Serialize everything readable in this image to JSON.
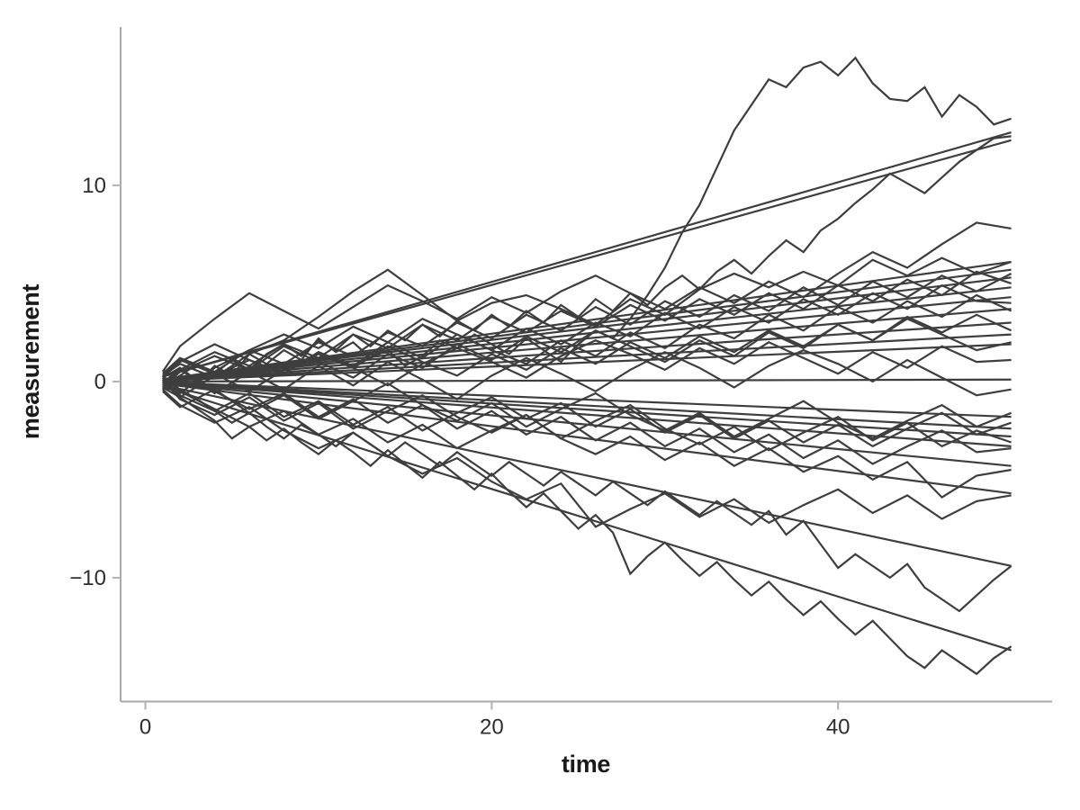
{
  "chart_data": {
    "type": "line",
    "title": "",
    "xlabel": "time",
    "ylabel": "measurement",
    "xlim": [
      -1.43,
      52.36
    ],
    "ylim": [
      -16.31,
      18.07
    ],
    "grid": "off",
    "legend": "none",
    "x_ticks": [
      {
        "value": 0,
        "label": "0"
      },
      {
        "value": 20,
        "label": "20"
      },
      {
        "value": 40,
        "label": "40"
      }
    ],
    "y_ticks": [
      {
        "value": -10,
        "label": "−10"
      },
      {
        "value": 0,
        "label": "0"
      },
      {
        "value": 10,
        "label": "10"
      }
    ],
    "colors": {
      "series_line": "#3e3e3e",
      "axis_line": "#a9a9a9",
      "tick_mark": "#b3b3b3",
      "tick_label": "#2e2e2e",
      "axis_title": "#1a1a1a",
      "background": "#ffffff"
    },
    "x": {
      "x26": [
        1,
        2,
        4,
        6,
        8,
        10,
        12,
        14,
        16,
        18,
        20,
        22,
        24,
        26,
        28,
        30,
        32,
        34,
        36,
        38,
        40,
        42,
        44,
        46,
        48,
        50
      ],
      "x50": [
        1,
        2,
        3,
        4,
        5,
        6,
        7,
        8,
        9,
        10,
        11,
        12,
        13,
        14,
        15,
        16,
        17,
        18,
        19,
        20,
        21,
        22,
        23,
        24,
        25,
        26,
        27,
        28,
        29,
        30,
        31,
        32,
        33,
        34,
        35,
        36,
        37,
        38,
        39,
        40,
        41,
        42,
        43,
        44,
        45,
        46,
        47,
        48,
        49,
        50
      ]
    },
    "series": [
      {
        "name": "series-1",
        "x_key": "x50",
        "walk": [
          0.2,
          0.7,
          -0.1,
          0.8,
          0.3,
          1.4,
          0.9,
          1.6,
          1.1,
          2.2,
          1.5,
          2.0,
          1.2,
          1.6,
          0.8,
          1.3,
          2.1,
          1.7,
          2.4,
          1.9,
          1.4,
          2.2,
          1.6,
          1.0,
          1.9,
          2.6,
          2.2,
          3.2,
          4.4,
          5.8,
          7.6,
          9.0,
          10.9,
          12.8,
          14.1,
          15.4,
          15.0,
          16.0,
          16.3,
          15.6,
          16.5,
          15.2,
          14.4,
          14.3,
          15.0,
          13.5,
          14.6,
          14.0,
          13.1,
          13.4
        ],
        "fit": {
          "slope": 0.254,
          "x_start": 1,
          "x_end": 50,
          "y_start": 0.25,
          "y_end": 12.7
        }
      },
      {
        "name": "series-2",
        "x_key": "x50",
        "walk": [
          -0.2,
          0.3,
          0.9,
          0.4,
          1.1,
          0.6,
          1.4,
          1.9,
          1.3,
          2.1,
          1.6,
          2.4,
          1.8,
          2.6,
          2.1,
          2.9,
          2.3,
          3.1,
          2.6,
          3.4,
          2.8,
          3.6,
          3.0,
          3.9,
          3.3,
          4.2,
          3.6,
          4.5,
          3.9,
          4.8,
          5.4,
          4.7,
          5.6,
          6.2,
          5.5,
          6.4,
          7.2,
          6.6,
          7.7,
          8.3,
          9.1,
          9.8,
          10.6,
          10.1,
          9.6,
          10.4,
          11.2,
          11.8,
          12.4,
          12.5
        ],
        "fit": {
          "slope": 0.246,
          "x_start": 1,
          "x_end": 50,
          "y_start": 0.25,
          "y_end": 12.3
        }
      },
      {
        "name": "series-3",
        "x_key": "x26",
        "walk": [
          0.3,
          0.9,
          0.2,
          1.4,
          2.1,
          3.3,
          4.6,
          5.7,
          4.4,
          3.1,
          4.0,
          4.4,
          3.7,
          2.9,
          4.2,
          3.4,
          4.7,
          5.5,
          4.8,
          5.6,
          4.9,
          6.2,
          5.4,
          6.3,
          5.5,
          6.1
        ],
        "fit": {
          "slope": 0.122,
          "x_start": 1,
          "x_end": 50,
          "y_start": 0.12,
          "y_end": 6.1
        }
      },
      {
        "name": "series-4",
        "x_key": "x26",
        "walk": [
          0.5,
          1.8,
          3.2,
          4.5,
          3.6,
          2.7,
          3.8,
          4.9,
          4.1,
          3.2,
          4.3,
          3.5,
          4.6,
          5.4,
          4.5,
          3.7,
          4.8,
          4.0,
          5.1,
          4.3,
          5.5,
          6.6,
          5.8,
          7.0,
          8.1,
          7.8
        ],
        "fit": {
          "slope": 0.114,
          "x_start": 1,
          "x_end": 50,
          "y_start": 0.11,
          "y_end": 5.7
        }
      },
      {
        "name": "series-5",
        "x_key": "x26",
        "walk": [
          -0.4,
          0.6,
          1.5,
          0.8,
          1.9,
          1.2,
          2.4,
          1.7,
          2.9,
          2.1,
          3.3,
          2.5,
          3.6,
          2.8,
          3.9,
          3.1,
          4.2,
          3.4,
          4.5,
          3.7,
          4.9,
          4.1,
          5.2,
          4.4,
          5.6,
          5.0
        ],
        "fit": {
          "slope": 0.106,
          "x_start": 1,
          "x_end": 50,
          "y_start": 0.11,
          "y_end": 5.3
        }
      },
      {
        "name": "series-6",
        "x_key": "x26",
        "walk": [
          0.1,
          -0.6,
          0.7,
          1.6,
          0.9,
          2.0,
          1.3,
          2.5,
          1.8,
          3.0,
          2.2,
          3.4,
          2.6,
          3.8,
          2.9,
          4.1,
          3.3,
          4.4,
          3.6,
          4.8,
          3.9,
          5.1,
          4.3,
          5.4,
          4.6,
          5.5
        ],
        "fit": {
          "slope": 0.096,
          "x_start": 1,
          "x_end": 50,
          "y_start": 0.1,
          "y_end": 4.8
        }
      },
      {
        "name": "series-7",
        "x_key": "x26",
        "walk": [
          0.4,
          1.2,
          0.5,
          1.6,
          2.4,
          1.7,
          2.8,
          2.0,
          3.2,
          2.4,
          1.6,
          2.7,
          1.9,
          3.0,
          2.3,
          3.5,
          2.7,
          3.8,
          3.0,
          4.2,
          3.4,
          4.5,
          3.7,
          4.9,
          4.1,
          4.0
        ],
        "fit": {
          "slope": 0.086,
          "x_start": 1,
          "x_end": 50,
          "y_start": 0.09,
          "y_end": 4.3
        }
      },
      {
        "name": "series-8",
        "x_key": "x26",
        "walk": [
          -0.3,
          0.5,
          1.3,
          0.6,
          1.8,
          1.0,
          0.2,
          1.4,
          0.7,
          1.9,
          1.1,
          2.3,
          1.5,
          2.6,
          1.8,
          1.0,
          2.1,
          1.3,
          2.5,
          1.7,
          2.9,
          2.1,
          3.3,
          2.5,
          3.4,
          2.6
        ],
        "fit": {
          "slope": 0.074,
          "x_start": 1,
          "x_end": 50,
          "y_start": 0.07,
          "y_end": 3.7
        }
      },
      {
        "name": "series-9",
        "x_key": "x26",
        "walk": [
          0.2,
          1.0,
          1.9,
          1.1,
          0.4,
          1.5,
          0.8,
          2.0,
          1.2,
          2.4,
          1.6,
          0.9,
          2.1,
          1.3,
          2.5,
          1.7,
          2.9,
          2.2,
          3.4,
          2.6,
          3.8,
          3.0,
          4.1,
          3.3,
          4.4,
          3.6
        ],
        "fit": {
          "slope": 0.06,
          "x_start": 1,
          "x_end": 50,
          "y_start": 0.06,
          "y_end": 3.0
        }
      },
      {
        "name": "series-10",
        "x_key": "x26",
        "walk": [
          0.0,
          -0.8,
          0.3,
          1.1,
          0.4,
          1.5,
          0.7,
          1.8,
          1.0,
          0.3,
          1.4,
          0.6,
          1.7,
          0.9,
          2.0,
          1.2,
          2.3,
          1.5,
          2.6,
          1.8,
          2.9,
          2.1,
          3.2,
          2.4,
          1.6,
          2.0
        ],
        "fit": {
          "slope": 0.048,
          "x_start": 1,
          "x_end": 50,
          "y_start": 0.05,
          "y_end": 2.4
        }
      },
      {
        "name": "series-11",
        "x_key": "x26",
        "walk": [
          0.3,
          1.1,
          0.4,
          -0.5,
          0.6,
          1.4,
          0.7,
          -0.2,
          0.9,
          1.7,
          1.0,
          0.2,
          1.3,
          2.1,
          1.4,
          0.6,
          1.7,
          0.9,
          2.0,
          1.2,
          0.4,
          1.5,
          0.7,
          1.8,
          1.0,
          1.1
        ],
        "fit": {
          "slope": 0.038,
          "x_start": 1,
          "x_end": 50,
          "y_start": 0.04,
          "y_end": 1.9
        }
      },
      {
        "name": "series-12",
        "x_key": "x26",
        "walk": [
          -0.1,
          0.7,
          -0.6,
          0.5,
          -0.4,
          0.8,
          -0.2,
          1.0,
          0.1,
          -0.9,
          0.3,
          1.2,
          0.4,
          -0.5,
          0.6,
          1.5,
          0.7,
          -0.3,
          0.8,
          1.6,
          0.9,
          0.0,
          1.1,
          0.2,
          -0.7,
          -0.4
        ],
        "fit": {
          "slope": 0.002,
          "x_start": 1,
          "x_end": 50,
          "y_start": 0.0,
          "y_end": 0.1
        }
      },
      {
        "name": "series-13",
        "x_key": "x26",
        "walk": [
          0.2,
          -0.7,
          -1.5,
          -0.6,
          -1.8,
          -1.0,
          -2.2,
          -1.3,
          -2.5,
          -1.6,
          -0.8,
          -1.9,
          -1.1,
          -2.3,
          -1.4,
          -2.6,
          -1.7,
          -2.9,
          -2.0,
          -3.1,
          -2.2,
          -3.3,
          -2.4,
          -1.6,
          -2.7,
          -2.1
        ],
        "fit": {
          "slope": -0.036,
          "x_start": 1,
          "x_end": 50,
          "y_start": -0.04,
          "y_end": -1.8
        }
      },
      {
        "name": "series-14",
        "x_key": "x26",
        "walk": [
          -0.5,
          -1.3,
          -0.4,
          -1.6,
          -0.7,
          -1.9,
          -1.0,
          -0.1,
          -1.2,
          -2.0,
          -1.1,
          -2.3,
          -1.4,
          -0.6,
          -1.7,
          -2.5,
          -1.6,
          -2.8,
          -1.9,
          -1.0,
          -2.1,
          -2.9,
          -2.0,
          -1.2,
          -2.3,
          -1.6
        ],
        "fit": {
          "slope": -0.048,
          "x_start": 1,
          "x_end": 50,
          "y_start": -0.05,
          "y_end": -2.4
        }
      },
      {
        "name": "series-15",
        "x_key": "x26",
        "walk": [
          0.1,
          -0.9,
          -1.7,
          -0.8,
          -2.0,
          -1.1,
          -2.4,
          -1.5,
          -0.7,
          -1.8,
          -2.6,
          -1.7,
          -2.9,
          -2.0,
          -1.2,
          -2.4,
          -3.2,
          -2.3,
          -3.5,
          -2.6,
          -1.8,
          -3.0,
          -2.1,
          -3.3,
          -2.5,
          -3.1
        ],
        "fit": {
          "slope": -0.056,
          "x_start": 1,
          "x_end": 50,
          "y_start": -0.06,
          "y_end": -2.8
        }
      },
      {
        "name": "series-16",
        "x_key": "x26",
        "walk": [
          -0.2,
          0.6,
          -0.5,
          -1.4,
          -0.6,
          -1.8,
          -0.9,
          -2.1,
          -1.2,
          -2.4,
          -1.5,
          -2.7,
          -1.8,
          -3.0,
          -2.1,
          -3.3,
          -2.4,
          -3.6,
          -2.7,
          -3.9,
          -3.0,
          -4.2,
          -3.3,
          -2.5,
          -3.6,
          -3.4
        ],
        "fit": {
          "slope": -0.066,
          "x_start": 1,
          "x_end": 50,
          "y_start": -0.07,
          "y_end": -3.3
        }
      },
      {
        "name": "series-17",
        "x_key": "x26",
        "walk": [
          0.3,
          -0.5,
          -1.4,
          -2.3,
          -1.5,
          -2.7,
          -1.9,
          -3.1,
          -2.2,
          -3.4,
          -2.5,
          -1.7,
          -2.9,
          -3.7,
          -2.8,
          -4.0,
          -3.1,
          -4.3,
          -3.4,
          -4.6,
          -3.8,
          -5.0,
          -4.1,
          -5.9,
          -4.8,
          -4.5
        ],
        "fit": {
          "slope": -0.086,
          "x_start": 1,
          "x_end": 50,
          "y_start": -0.09,
          "y_end": -4.3
        }
      },
      {
        "name": "series-18",
        "x_key": "x26",
        "walk": [
          -0.4,
          -1.2,
          -2.1,
          -1.3,
          -2.5,
          -3.4,
          -2.6,
          -3.8,
          -4.7,
          -3.9,
          -5.1,
          -6.0,
          -5.2,
          -7.4,
          -6.5,
          -5.7,
          -6.9,
          -6.0,
          -7.2,
          -6.3,
          -5.5,
          -6.7,
          -5.8,
          -7.0,
          -6.1,
          -5.8
        ],
        "fit": {
          "slope": -0.114,
          "x_start": 1,
          "x_end": 50,
          "y_start": -0.11,
          "y_end": -5.7
        }
      },
      {
        "name": "series-19",
        "x_key": "x50",
        "walk": [
          0.2,
          -0.4,
          -0.9,
          -1.5,
          -2.1,
          -1.6,
          -2.3,
          -2.9,
          -2.2,
          -2.7,
          -3.3,
          -2.6,
          -3.2,
          -3.8,
          -3.1,
          -3.7,
          -4.3,
          -3.6,
          -4.2,
          -4.8,
          -4.1,
          -4.7,
          -5.3,
          -4.6,
          -5.2,
          -5.8,
          -5.1,
          -5.7,
          -6.3,
          -5.6,
          -6.2,
          -6.8,
          -6.1,
          -6.7,
          -7.3,
          -6.6,
          -7.8,
          -7.1,
          -8.3,
          -9.5,
          -8.8,
          -9.4,
          -10.0,
          -9.3,
          -10.5,
          -11.1,
          -11.7,
          -10.9,
          -10.1,
          -9.4
        ],
        "fit": {
          "slope": -0.188,
          "x_start": 1,
          "x_end": 50,
          "y_start": -0.19,
          "y_end": -9.4
        }
      },
      {
        "name": "series-20",
        "x_key": "x50",
        "walk": [
          -0.3,
          -0.8,
          -1.4,
          -2.0,
          -2.9,
          -2.3,
          -3.0,
          -2.4,
          -3.1,
          -3.7,
          -3.0,
          -3.6,
          -4.3,
          -3.5,
          -4.2,
          -4.9,
          -4.1,
          -4.8,
          -5.5,
          -4.7,
          -5.6,
          -6.4,
          -5.7,
          -6.6,
          -7.5,
          -6.8,
          -7.7,
          -9.8,
          -8.9,
          -8.2,
          -9.1,
          -9.9,
          -9.2,
          -10.1,
          -10.9,
          -10.2,
          -11.1,
          -11.9,
          -11.2,
          -12.1,
          -12.9,
          -12.2,
          -13.1,
          -14.0,
          -14.6,
          -13.7,
          -14.3,
          -14.9,
          -14.1,
          -13.5
        ],
        "fit": {
          "slope": -0.274,
          "x_start": 1,
          "x_end": 50,
          "y_start": -0.27,
          "y_end": -13.7
        }
      }
    ]
  }
}
